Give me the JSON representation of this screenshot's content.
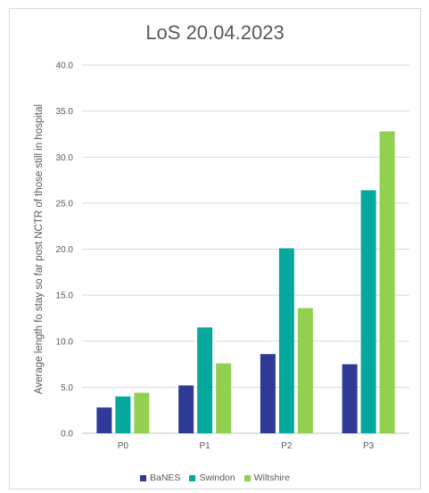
{
  "chart_data": {
    "type": "bar",
    "title": "LoS 20.04.2023",
    "xlabel": "",
    "ylabel": "Average length fo stay so far post NCTR of those still in hospital",
    "categories": [
      "P0",
      "P1",
      "P2",
      "P3"
    ],
    "ylim": [
      0,
      40
    ],
    "yticks": [
      "0.0",
      "5.0",
      "10.0",
      "15.0",
      "20.0",
      "25.0",
      "30.0",
      "35.0",
      "40.0"
    ],
    "grid": true,
    "legend_position": "bottom",
    "series": [
      {
        "name": "BaNES",
        "color": "#2E3A96",
        "values": [
          2.8,
          5.2,
          8.6,
          7.5
        ]
      },
      {
        "name": "Swindon",
        "color": "#05A89D",
        "values": [
          4.0,
          11.5,
          20.1,
          26.4
        ]
      },
      {
        "name": "Wiltshire",
        "color": "#92D050",
        "values": [
          4.4,
          7.6,
          13.6,
          32.8
        ]
      }
    ]
  }
}
